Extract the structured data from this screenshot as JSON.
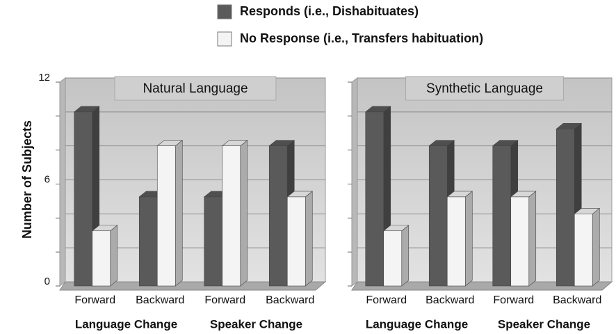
{
  "legend_position": "top",
  "ylabel": "Number of Subjects",
  "chart_data": [
    {
      "type": "bar",
      "title": "Natural Language",
      "categories": [
        "Forward",
        "Backward",
        "Forward",
        "Backward"
      ],
      "group_labels": [
        "Language Change",
        "Speaker Change"
      ],
      "series": [
        {
          "name": "Responds (i.e., Dishabituates)",
          "color": "#5a5a5a",
          "values": [
            10,
            5,
            5,
            8
          ]
        },
        {
          "name": "No Response (i.e., Transfers habituation)",
          "color": "#f4f4f4",
          "values": [
            3,
            8,
            8,
            5
          ]
        }
      ],
      "ylim": [
        0,
        12
      ],
      "yticks": [
        0,
        6,
        12
      ],
      "minor_yticks": [
        2,
        4,
        8,
        10
      ],
      "grid": true
    },
    {
      "type": "bar",
      "title": "Synthetic Language",
      "categories": [
        "Forward",
        "Backward",
        "Forward",
        "Backward"
      ],
      "group_labels": [
        "Language Change",
        "Speaker Change"
      ],
      "series": [
        {
          "color": "#5a5a5a",
          "values": [
            10,
            8,
            8,
            9
          ]
        },
        {
          "color": "#f4f4f4",
          "values": [
            3,
            5,
            5,
            4
          ]
        }
      ],
      "ylim": [
        0,
        12
      ],
      "minor_yticks": [
        0,
        2,
        4,
        6,
        8,
        10,
        12
      ],
      "grid": true
    }
  ]
}
